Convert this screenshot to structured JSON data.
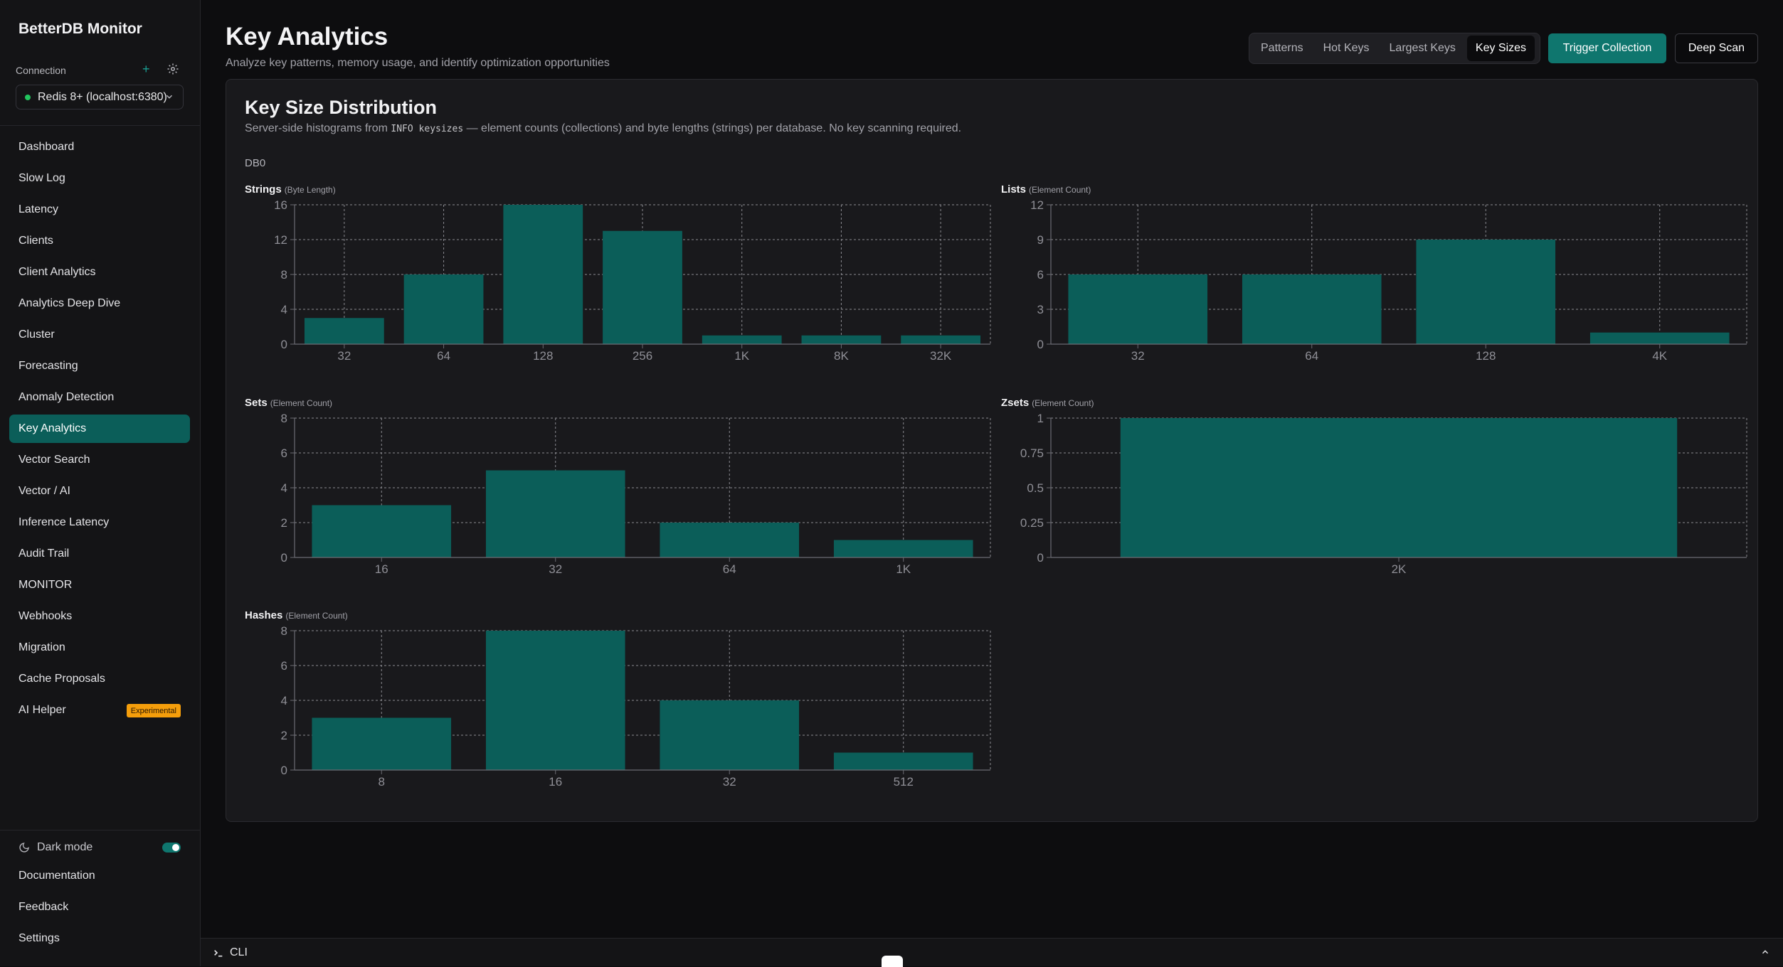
{
  "app": {
    "brand": "BetterDB Monitor",
    "connection_label": "Connection",
    "connection_value": "Redis 8+ (localhost:6380)"
  },
  "sidebar": {
    "items": [
      {
        "label": "Dashboard"
      },
      {
        "label": "Slow Log"
      },
      {
        "label": "Latency"
      },
      {
        "label": "Clients"
      },
      {
        "label": "Client Analytics"
      },
      {
        "label": "Analytics Deep Dive"
      },
      {
        "label": "Cluster"
      },
      {
        "label": "Forecasting"
      },
      {
        "label": "Anomaly Detection"
      },
      {
        "label": "Key Analytics",
        "active": true
      },
      {
        "label": "Vector Search"
      },
      {
        "label": "Vector / AI"
      },
      {
        "label": "Inference Latency"
      },
      {
        "label": "Audit Trail"
      },
      {
        "label": "MONITOR"
      },
      {
        "label": "Webhooks"
      },
      {
        "label": "Migration"
      },
      {
        "label": "Cache Proposals"
      },
      {
        "label": "AI Helper",
        "badge": "Experimental"
      }
    ],
    "bottom": {
      "dark_mode": "Dark mode",
      "dark_mode_on": true,
      "documentation": "Documentation",
      "feedback": "Feedback",
      "settings": "Settings"
    }
  },
  "header": {
    "title": "Key Analytics",
    "subtitle": "Analyze key patterns, memory usage, and identify optimization opportunities",
    "tabs": [
      {
        "label": "Patterns"
      },
      {
        "label": "Hot Keys"
      },
      {
        "label": "Largest Keys"
      },
      {
        "label": "Key Sizes",
        "active": true
      }
    ],
    "trigger_button": "Trigger Collection",
    "scan_button": "Deep Scan"
  },
  "card": {
    "title": "Key Size Distribution",
    "subtitle_pre": "Server-side histograms from",
    "subtitle_code": "INFO keysizes",
    "subtitle_post": "— element counts (collections) and byte lengths (strings) per database. No key scanning required.",
    "db": "DB0"
  },
  "chart_data": [
    {
      "type": "bar",
      "title": "Strings",
      "unit": "(Byte Length)",
      "categories": [
        "32",
        "64",
        "128",
        "256",
        "1K",
        "8K",
        "32K"
      ],
      "values": [
        3,
        8,
        16,
        13,
        1,
        1,
        1
      ],
      "ylim": [
        0,
        16
      ],
      "yticks": [
        "0",
        "4",
        "8",
        "12",
        "16"
      ],
      "grid": true
    },
    {
      "type": "bar",
      "title": "Lists",
      "unit": "(Element Count)",
      "categories": [
        "32",
        "64",
        "128",
        "4K"
      ],
      "values": [
        6,
        6,
        9,
        1
      ],
      "ylim": [
        0,
        12
      ],
      "yticks": [
        "0",
        "3",
        "6",
        "9",
        "12"
      ],
      "grid": true
    },
    {
      "type": "bar",
      "title": "Sets",
      "unit": "(Element Count)",
      "categories": [
        "16",
        "32",
        "64",
        "1K"
      ],
      "values": [
        3,
        5,
        2,
        1
      ],
      "ylim": [
        0,
        8
      ],
      "yticks": [
        "0",
        "2",
        "4",
        "6",
        "8"
      ],
      "grid": true
    },
    {
      "type": "bar",
      "title": "Zsets",
      "unit": "(Element Count)",
      "categories": [
        "2K"
      ],
      "values": [
        1
      ],
      "ylim": [
        0,
        1
      ],
      "yticks": [
        "0",
        "0.25",
        "0.5",
        "0.75",
        "1"
      ],
      "grid": true
    },
    {
      "type": "bar",
      "title": "Hashes",
      "unit": "(Element Count)",
      "categories": [
        "8",
        "16",
        "32",
        "512"
      ],
      "values": [
        3,
        8,
        4,
        1
      ],
      "ylim": [
        0,
        8
      ],
      "yticks": [
        "0",
        "2",
        "4",
        "6",
        "8"
      ],
      "grid": true
    }
  ],
  "cli": {
    "label": "CLI"
  },
  "colors": {
    "accent": "#0f766e",
    "bar": "#0b5e59",
    "active_nav": "#0b5e59",
    "badge": "#f59e0b"
  }
}
